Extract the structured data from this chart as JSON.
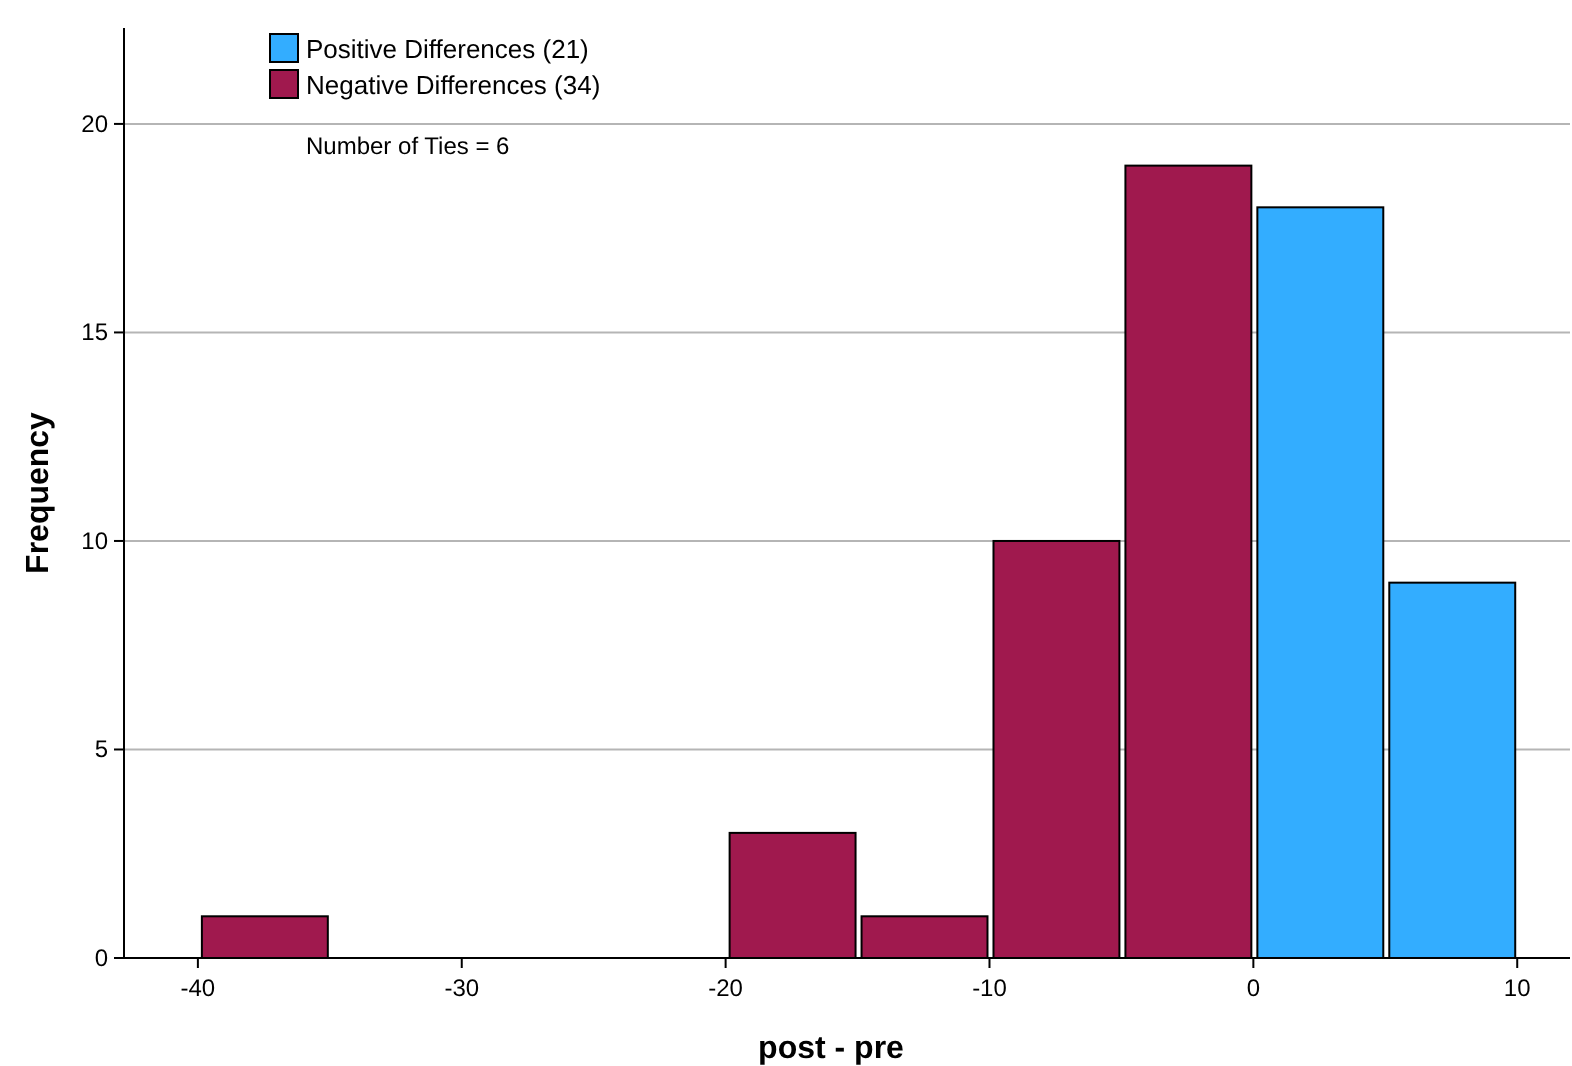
{
  "chart_data": {
    "type": "histogram",
    "xlabel": "post - pre",
    "ylabel": "Frequency",
    "bins": [
      -40,
      -35,
      -30,
      -25,
      -20,
      -15,
      -10,
      -5,
      0,
      5,
      10
    ],
    "series": [
      {
        "name": "Positive Differences (21)",
        "color": "#33adff",
        "values": [
          0,
          0,
          0,
          0,
          0,
          0,
          0,
          0,
          18,
          9
        ]
      },
      {
        "name": "Negative Differences (34)",
        "color": "#a0194e",
        "values": [
          1,
          0,
          0,
          0,
          3,
          1,
          10,
          19,
          0,
          0
        ]
      }
    ],
    "xlim": [
      -42.8,
      12
    ],
    "xticks": [
      -40,
      -30,
      -20,
      -10,
      0,
      10
    ],
    "ylim": [
      0,
      22.3
    ],
    "yticks": [
      0,
      5,
      10,
      15,
      20
    ],
    "grid": "y",
    "legend": "top left",
    "annotations": [
      "Number of Ties = 6"
    ]
  }
}
